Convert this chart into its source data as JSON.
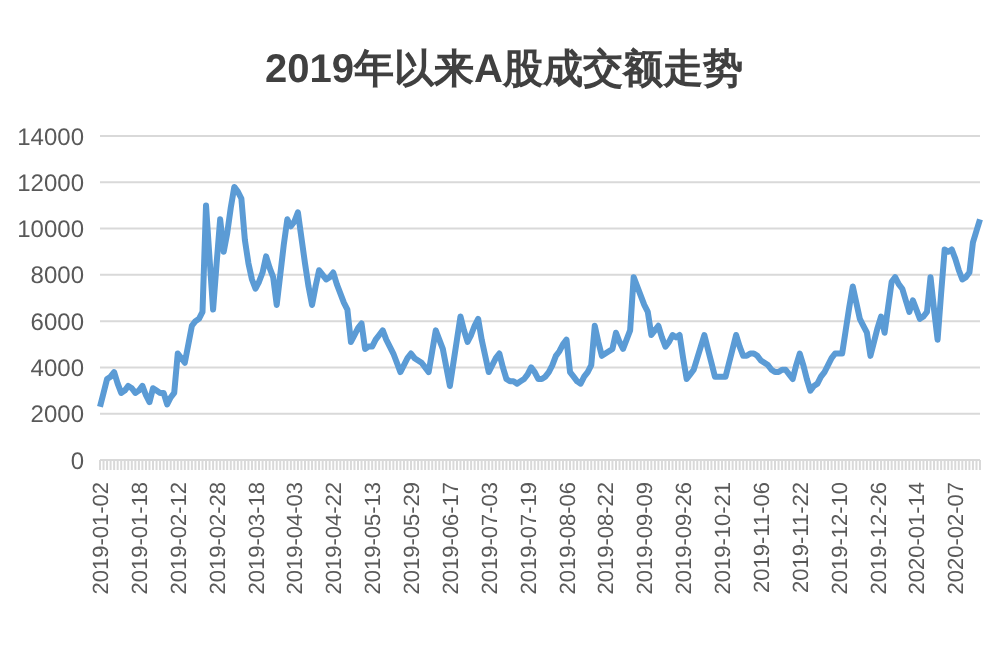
{
  "chart_data": {
    "type": "line",
    "title": "2019年以来A股成交额走势",
    "categories": [
      "2019-01-02",
      null,
      null,
      null,
      null,
      null,
      null,
      null,
      null,
      null,
      null,
      "2019-01-18",
      null,
      null,
      null,
      null,
      null,
      null,
      null,
      null,
      null,
      null,
      "2019-02-12",
      null,
      null,
      null,
      null,
      null,
      null,
      null,
      null,
      null,
      null,
      "2019-02-28",
      null,
      null,
      null,
      null,
      null,
      null,
      null,
      null,
      null,
      null,
      "2019-03-18",
      null,
      null,
      null,
      null,
      null,
      null,
      null,
      null,
      null,
      null,
      "2019-04-03",
      null,
      null,
      null,
      null,
      null,
      null,
      null,
      null,
      null,
      null,
      "2019-04-22",
      null,
      null,
      null,
      null,
      null,
      null,
      null,
      null,
      null,
      null,
      "2019-05-13",
      null,
      null,
      null,
      null,
      null,
      null,
      null,
      null,
      null,
      null,
      "2019-05-29",
      null,
      null,
      null,
      null,
      null,
      null,
      null,
      null,
      null,
      null,
      "2019-06-17",
      null,
      null,
      null,
      null,
      null,
      null,
      null,
      null,
      null,
      null,
      "2019-07-03",
      null,
      null,
      null,
      null,
      null,
      null,
      null,
      null,
      null,
      null,
      "2019-07-19",
      null,
      null,
      null,
      null,
      null,
      null,
      null,
      null,
      null,
      null,
      "2019-08-06",
      null,
      null,
      null,
      null,
      null,
      null,
      null,
      null,
      null,
      null,
      "2019-08-22",
      null,
      null,
      null,
      null,
      null,
      null,
      null,
      null,
      null,
      null,
      "2019-09-09",
      null,
      null,
      null,
      null,
      null,
      null,
      null,
      null,
      null,
      null,
      "2019-09-26",
      null,
      null,
      null,
      null,
      null,
      null,
      null,
      null,
      null,
      null,
      "2019-10-21",
      null,
      null,
      null,
      null,
      null,
      null,
      null,
      null,
      null,
      null,
      "2019-11-06",
      null,
      null,
      null,
      null,
      null,
      null,
      null,
      null,
      null,
      null,
      "2019-11-22",
      null,
      null,
      null,
      null,
      null,
      null,
      null,
      null,
      null,
      null,
      "2019-12-10",
      null,
      null,
      null,
      null,
      null,
      null,
      null,
      null,
      null,
      null,
      "2019-12-26",
      null,
      null,
      null,
      null,
      null,
      null,
      null,
      null,
      null,
      null,
      "2020-01-14",
      null,
      null,
      null,
      null,
      null,
      null,
      null,
      null,
      null,
      null,
      "2020-02-07",
      null,
      null,
      null,
      null,
      null,
      null,
      null
    ],
    "series": [
      {
        "color": "#5b9bd5",
        "values": [
          2300,
          2900,
          3500,
          3600,
          3800,
          3300,
          2900,
          3000,
          3200,
          3100,
          2900,
          3000,
          3200,
          2800,
          2500,
          3100,
          3000,
          2900,
          2900,
          2400,
          2700,
          2900,
          4600,
          4400,
          4200,
          5000,
          5800,
          6000,
          6100,
          6400,
          11000,
          8700,
          6500,
          8500,
          10400,
          9000,
          9800,
          10900,
          11800,
          11600,
          11300,
          9500,
          8500,
          7800,
          7400,
          7700,
          8100,
          8800,
          8300,
          7900,
          6700,
          8000,
          9300,
          10400,
          10100,
          10300,
          10700,
          9600,
          8500,
          7500,
          6700,
          7500,
          8200,
          8000,
          7800,
          7900,
          8100,
          7600,
          7200,
          6800,
          6500,
          5100,
          5400,
          5700,
          5900,
          4800,
          4900,
          4900,
          5200,
          5400,
          5600,
          5200,
          4900,
          4600,
          4200,
          3800,
          4100,
          4400,
          4600,
          4400,
          4300,
          4200,
          4000,
          3800,
          4700,
          5600,
          5200,
          4800,
          4000,
          3200,
          4200,
          5200,
          6200,
          5600,
          5100,
          5400,
          5800,
          6100,
          5200,
          4500,
          3800,
          4100,
          4400,
          4600,
          4000,
          3500,
          3400,
          3400,
          3300,
          3400,
          3500,
          3700,
          4000,
          3800,
          3500,
          3500,
          3600,
          3800,
          4100,
          4500,
          4700,
          5000,
          5200,
          3800,
          3600,
          3400,
          3300,
          3600,
          3800,
          4100,
          5800,
          5100,
          4500,
          4600,
          4700,
          4800,
          5500,
          5100,
          4800,
          5200,
          5600,
          7900,
          7500,
          7100,
          6700,
          6400,
          5400,
          5600,
          5800,
          5300,
          4900,
          5100,
          5400,
          5300,
          5400,
          4400,
          3500,
          3700,
          3900,
          4400,
          4900,
          5400,
          4800,
          4200,
          3600,
          3600,
          3600,
          3600,
          4200,
          4800,
          5400,
          4900,
          4500,
          4500,
          4600,
          4600,
          4500,
          4300,
          4200,
          4100,
          3900,
          3800,
          3800,
          3900,
          3900,
          3700,
          3500,
          4100,
          4600,
          4100,
          3500,
          3000,
          3200,
          3300,
          3600,
          3800,
          4100,
          4400,
          4600,
          4600,
          4600,
          5600,
          6600,
          7500,
          6800,
          6100,
          5800,
          5500,
          4500,
          5100,
          5700,
          6200,
          5500,
          6600,
          7700,
          7900,
          7600,
          7400,
          6900,
          6400,
          6900,
          6500,
          6100,
          6200,
          6400,
          7900,
          6500,
          5200,
          7200,
          9100,
          9000,
          9100,
          8700,
          8200,
          7800,
          7900,
          8100,
          9400,
          9900,
          10400
        ]
      }
    ],
    "ylim": [
      0,
      14000
    ],
    "yticks": [
      0,
      2000,
      4000,
      6000,
      8000,
      10000,
      12000,
      14000
    ],
    "grid": "y",
    "legend": false,
    "marker": "none",
    "line_style": "solid"
  }
}
